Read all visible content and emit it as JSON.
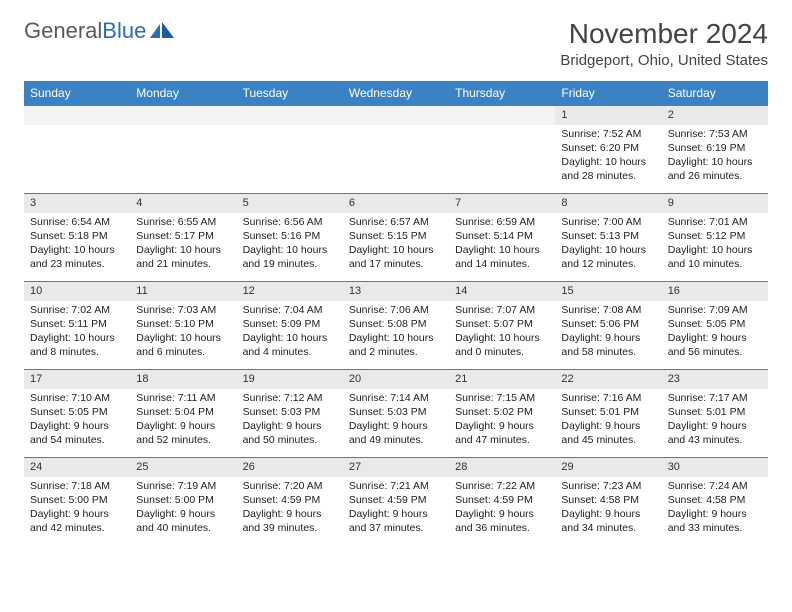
{
  "brand": {
    "name_a": "General",
    "name_b": "Blue"
  },
  "title": "November 2024",
  "location": "Bridgeport, Ohio, United States",
  "colors": {
    "header_bg": "#3a82c4",
    "header_fg": "#ffffff",
    "daynum_bg": "#e9e9e9",
    "rule": "#3a82c4",
    "brand_blue": "#2a6db8",
    "text": "#222222"
  },
  "day_headers": [
    "Sunday",
    "Monday",
    "Tuesday",
    "Wednesday",
    "Thursday",
    "Friday",
    "Saturday"
  ],
  "weeks": [
    [
      null,
      null,
      null,
      null,
      null,
      {
        "n": "1",
        "sunrise": "7:52 AM",
        "sunset": "6:20 PM",
        "day_h": 10,
        "day_m": 28
      },
      {
        "n": "2",
        "sunrise": "7:53 AM",
        "sunset": "6:19 PM",
        "day_h": 10,
        "day_m": 26
      }
    ],
    [
      {
        "n": "3",
        "sunrise": "6:54 AM",
        "sunset": "5:18 PM",
        "day_h": 10,
        "day_m": 23
      },
      {
        "n": "4",
        "sunrise": "6:55 AM",
        "sunset": "5:17 PM",
        "day_h": 10,
        "day_m": 21
      },
      {
        "n": "5",
        "sunrise": "6:56 AM",
        "sunset": "5:16 PM",
        "day_h": 10,
        "day_m": 19
      },
      {
        "n": "6",
        "sunrise": "6:57 AM",
        "sunset": "5:15 PM",
        "day_h": 10,
        "day_m": 17
      },
      {
        "n": "7",
        "sunrise": "6:59 AM",
        "sunset": "5:14 PM",
        "day_h": 10,
        "day_m": 14
      },
      {
        "n": "8",
        "sunrise": "7:00 AM",
        "sunset": "5:13 PM",
        "day_h": 10,
        "day_m": 12
      },
      {
        "n": "9",
        "sunrise": "7:01 AM",
        "sunset": "5:12 PM",
        "day_h": 10,
        "day_m": 10
      }
    ],
    [
      {
        "n": "10",
        "sunrise": "7:02 AM",
        "sunset": "5:11 PM",
        "day_h": 10,
        "day_m": 8
      },
      {
        "n": "11",
        "sunrise": "7:03 AM",
        "sunset": "5:10 PM",
        "day_h": 10,
        "day_m": 6
      },
      {
        "n": "12",
        "sunrise": "7:04 AM",
        "sunset": "5:09 PM",
        "day_h": 10,
        "day_m": 4
      },
      {
        "n": "13",
        "sunrise": "7:06 AM",
        "sunset": "5:08 PM",
        "day_h": 10,
        "day_m": 2
      },
      {
        "n": "14",
        "sunrise": "7:07 AM",
        "sunset": "5:07 PM",
        "day_h": 10,
        "day_m": 0
      },
      {
        "n": "15",
        "sunrise": "7:08 AM",
        "sunset": "5:06 PM",
        "day_h": 9,
        "day_m": 58
      },
      {
        "n": "16",
        "sunrise": "7:09 AM",
        "sunset": "5:05 PM",
        "day_h": 9,
        "day_m": 56
      }
    ],
    [
      {
        "n": "17",
        "sunrise": "7:10 AM",
        "sunset": "5:05 PM",
        "day_h": 9,
        "day_m": 54
      },
      {
        "n": "18",
        "sunrise": "7:11 AM",
        "sunset": "5:04 PM",
        "day_h": 9,
        "day_m": 52
      },
      {
        "n": "19",
        "sunrise": "7:12 AM",
        "sunset": "5:03 PM",
        "day_h": 9,
        "day_m": 50
      },
      {
        "n": "20",
        "sunrise": "7:14 AM",
        "sunset": "5:03 PM",
        "day_h": 9,
        "day_m": 49
      },
      {
        "n": "21",
        "sunrise": "7:15 AM",
        "sunset": "5:02 PM",
        "day_h": 9,
        "day_m": 47
      },
      {
        "n": "22",
        "sunrise": "7:16 AM",
        "sunset": "5:01 PM",
        "day_h": 9,
        "day_m": 45
      },
      {
        "n": "23",
        "sunrise": "7:17 AM",
        "sunset": "5:01 PM",
        "day_h": 9,
        "day_m": 43
      }
    ],
    [
      {
        "n": "24",
        "sunrise": "7:18 AM",
        "sunset": "5:00 PM",
        "day_h": 9,
        "day_m": 42
      },
      {
        "n": "25",
        "sunrise": "7:19 AM",
        "sunset": "5:00 PM",
        "day_h": 9,
        "day_m": 40
      },
      {
        "n": "26",
        "sunrise": "7:20 AM",
        "sunset": "4:59 PM",
        "day_h": 9,
        "day_m": 39
      },
      {
        "n": "27",
        "sunrise": "7:21 AM",
        "sunset": "4:59 PM",
        "day_h": 9,
        "day_m": 37
      },
      {
        "n": "28",
        "sunrise": "7:22 AM",
        "sunset": "4:59 PM",
        "day_h": 9,
        "day_m": 36
      },
      {
        "n": "29",
        "sunrise": "7:23 AM",
        "sunset": "4:58 PM",
        "day_h": 9,
        "day_m": 34
      },
      {
        "n": "30",
        "sunrise": "7:24 AM",
        "sunset": "4:58 PM",
        "day_h": 9,
        "day_m": 33
      }
    ]
  ]
}
